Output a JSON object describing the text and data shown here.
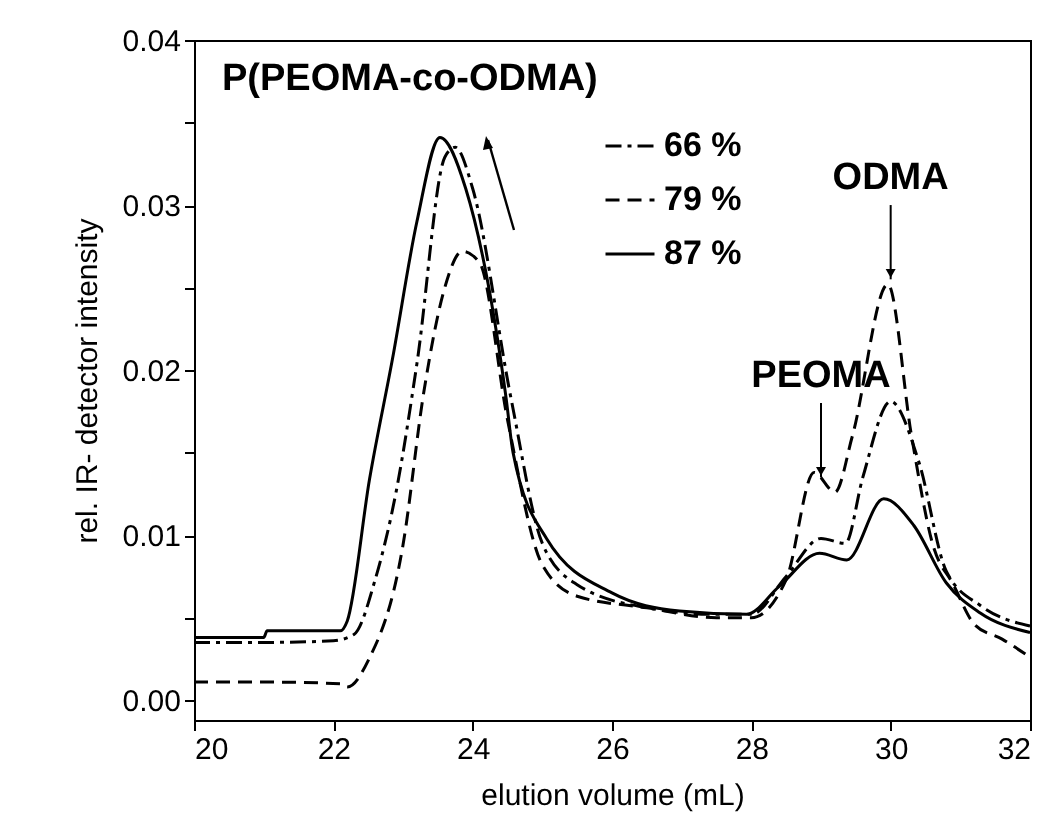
{
  "chart_data": {
    "type": "line",
    "title": "P(PEOMA-co-ODMA)",
    "xlabel": "elution volume (mL)",
    "ylabel": "rel. IR- detector intensity",
    "xlim": [
      20,
      32
    ],
    "ylim": [
      -0.0012,
      0.04
    ],
    "xticks": [
      20,
      22,
      24,
      26,
      28,
      30,
      32
    ],
    "yticks": [
      {
        "value": 0,
        "label": "0.00"
      },
      {
        "value": 0.005,
        "label": null
      },
      {
        "value": 0.01,
        "label": "0.01"
      },
      {
        "value": 0.015,
        "label": null
      },
      {
        "value": 0.02,
        "label": "0.02"
      },
      {
        "value": 0.025,
        "label": null
      },
      {
        "value": 0.03,
        "label": "0.03"
      },
      {
        "value": 0.035,
        "label": null
      },
      {
        "value": 0.04,
        "label": "0.04"
      }
    ],
    "legend": "top right",
    "grid": false,
    "annotations": [
      {
        "text": "ODMA",
        "x": 30,
        "y": 0.0255
      },
      {
        "text": "PEOMA",
        "x": 29,
        "y": 0.0135
      }
    ],
    "series": [
      {
        "name": "66 %",
        "color": "#000000",
        "line_style": "dashdot",
        "x": [
          20,
          21,
          22,
          22.3,
          22.6,
          22.9,
          23.2,
          23.6,
          23.75,
          24.0,
          24.55,
          25.0,
          25.5,
          26.5,
          27.5,
          28.0,
          28.5,
          29.0,
          29.35,
          29.6,
          30.0,
          30.4,
          30.8,
          31.3,
          32
        ],
        "values": [
          0.0035,
          0.0035,
          0.0036,
          0.004,
          0.0073,
          0.0126,
          0.0204,
          0.0329,
          0.0335,
          0.031,
          0.0183,
          0.0095,
          0.007,
          0.0056,
          0.0052,
          0.0052,
          0.0075,
          0.0098,
          0.0095,
          0.0135,
          0.0181,
          0.0145,
          0.0078,
          0.0057,
          0.0045
        ]
      },
      {
        "name": "79 %",
        "color": "#000000",
        "line_style": "dashed",
        "x": [
          20,
          21,
          22.1,
          22.2,
          22.5,
          23.0,
          23.3,
          23.6,
          23.85,
          24.1,
          24.5,
          25.0,
          25.5,
          26.5,
          27.5,
          28.0,
          28.5,
          28.9,
          29.2,
          29.45,
          29.96,
          30.3,
          30.6,
          30.9,
          31.2,
          31.6,
          32
        ],
        "values": [
          0.0011,
          0.0011,
          0.001,
          0.0008,
          0.0024,
          0.0094,
          0.0187,
          0.025,
          0.0272,
          0.0265,
          0.017,
          0.0082,
          0.0063,
          0.0056,
          0.005,
          0.005,
          0.0073,
          0.0138,
          0.0126,
          0.016,
          0.0252,
          0.016,
          0.0095,
          0.007,
          0.0046,
          0.0037,
          0.0026
        ]
      },
      {
        "name": "87 %",
        "color": "#000000",
        "line_style": "solid",
        "x": [
          20,
          21,
          21.05,
          22.1,
          22.2,
          22.52,
          22.85,
          23.2,
          23.53,
          23.9,
          24.48,
          24.58,
          25.06,
          26.0,
          26.97,
          27.93,
          28.4,
          28.98,
          29.37,
          29.9,
          30.33,
          30.8,
          31.28,
          32
        ],
        "values": [
          0.0038,
          0.0038,
          0.0042,
          0.0042,
          0.0048,
          0.0134,
          0.0207,
          0.029,
          0.0341,
          0.031,
          0.0183,
          0.015,
          0.0098,
          0.0065,
          0.0054,
          0.0052,
          0.0069,
          0.0089,
          0.0085,
          0.0122,
          0.0106,
          0.0071,
          0.0053,
          0.0041
        ]
      }
    ]
  }
}
